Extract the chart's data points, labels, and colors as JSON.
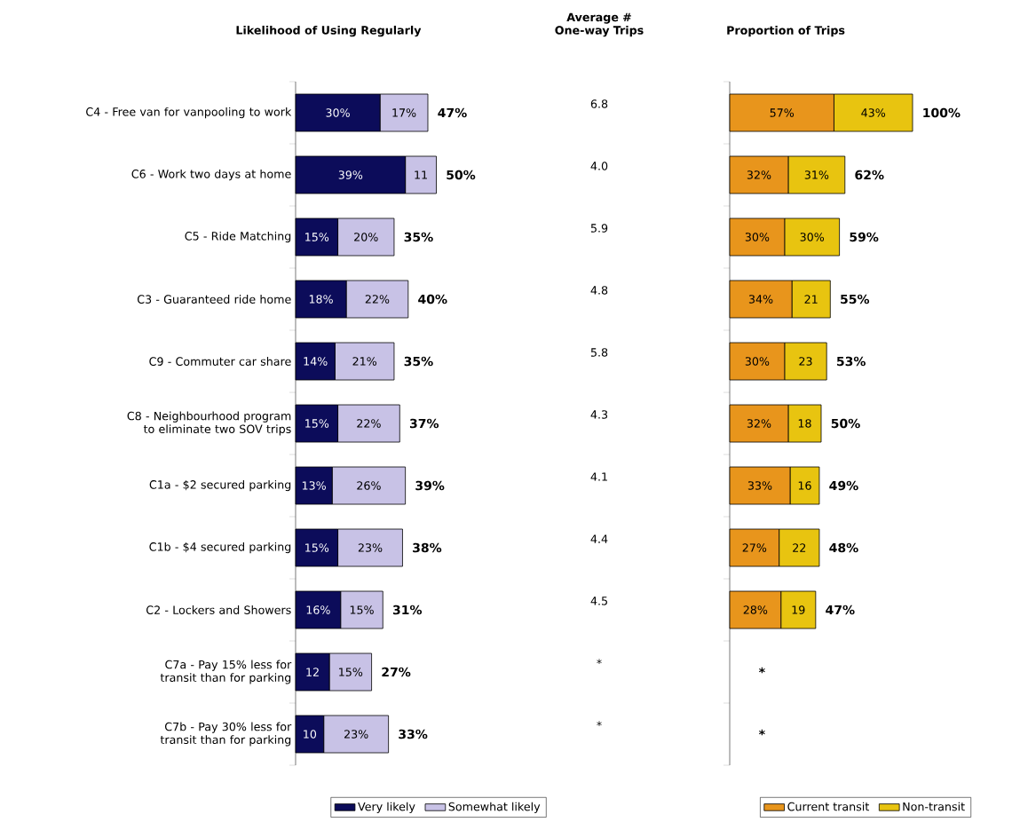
{
  "chart_data": [
    {
      "type": "bar",
      "orientation": "horizontal",
      "stacked": true,
      "title": "Likelihood of Using Regularly",
      "categories": [
        "C4 - Free van for vanpooling to work",
        "C6 - Work two days at home",
        "C5 - Ride Matching",
        "C3 - Guaranteed ride home",
        "C9 - Commuter car share",
        "C8 - Neighbourhood program to eliminate two SOV trips",
        "C1a - $2 secured parking",
        "C1b - $4 secured parking",
        "C2 - Lockers and Showers",
        "C7a - Pay 15% less for transit than for parking",
        "C7b - Pay 30% less for transit than for parking"
      ],
      "series": [
        {
          "name": "Very likely",
          "color": "#0c0c5a",
          "values": [
            30,
            39,
            15,
            18,
            14,
            15,
            13,
            15,
            16,
            12,
            10
          ],
          "value_labels": [
            "30%",
            "39%",
            "15%",
            "18%",
            "14%",
            "15%",
            "13%",
            "15%",
            "16%",
            "12",
            "10"
          ]
        },
        {
          "name": "Somewhat likely",
          "color": "#c8c2e6",
          "values": [
            17,
            11,
            20,
            22,
            21,
            22,
            26,
            23,
            15,
            15,
            23
          ],
          "value_labels": [
            "17%",
            "11",
            "20%",
            "22%",
            "21%",
            "22%",
            "26%",
            "23%",
            "15%",
            "15%",
            "23%"
          ]
        }
      ],
      "totals": [
        "47%",
        "50%",
        "35%",
        "40%",
        "35%",
        "37%",
        "39%",
        "38%",
        "31%",
        "27%",
        "33%"
      ],
      "tick_labels": "y",
      "legend": "bottom"
    },
    {
      "type": "other",
      "title": "Average # One-way Trips",
      "value_labels": [
        "6.8",
        "4.0",
        "5.9",
        "4.8",
        "5.8",
        "4.3",
        "4.1",
        "4.4",
        "4.5",
        "*",
        "*"
      ]
    },
    {
      "type": "bar",
      "orientation": "horizontal",
      "stacked": true,
      "title": "Proportion of Trips",
      "categories": [
        null,
        null,
        null,
        null,
        null,
        null,
        null,
        null,
        null,
        null,
        null
      ],
      "series": [
        {
          "name": "Current transit",
          "color": "#e8951c",
          "values": [
            57,
            32,
            30,
            34,
            30,
            32,
            33,
            27,
            28,
            null,
            null
          ],
          "value_labels": [
            "57%",
            "32%",
            "30%",
            "34%",
            "30%",
            "32%",
            "33%",
            "27%",
            "28%",
            null,
            null
          ]
        },
        {
          "name": "Non-transit",
          "color": "#e8c410",
          "values": [
            43,
            31,
            30,
            21,
            23,
            18,
            16,
            22,
            19,
            null,
            null
          ],
          "value_labels": [
            "43%",
            "31%",
            "30%",
            "21",
            "23",
            "18",
            "16",
            "22",
            "19",
            null,
            null
          ]
        }
      ],
      "totals": [
        "100%",
        "62%",
        "59%",
        "55%",
        "53%",
        "50%",
        "49%",
        "48%",
        "47%",
        "*",
        "*"
      ],
      "tick_labels": false,
      "legend": "bottom"
    }
  ]
}
